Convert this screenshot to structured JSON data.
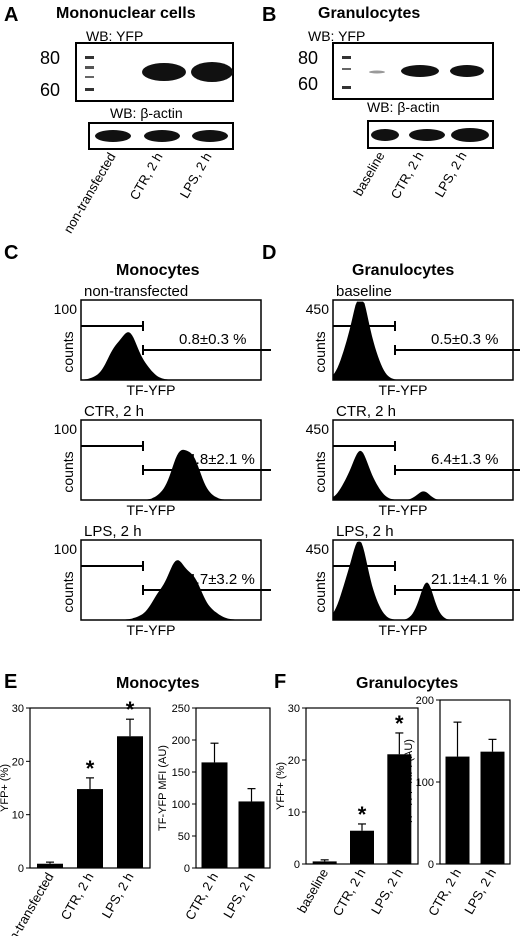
{
  "panels": {
    "A": {
      "letter": "A",
      "title": "Mononuclear cells",
      "wb_top": "WB: YFP",
      "wb_bottom": "WB: β-actin",
      "mw": [
        "80",
        "60"
      ],
      "lanes": [
        "non-transfected",
        "CTR, 2 h",
        "LPS, 2 h"
      ]
    },
    "B": {
      "letter": "B",
      "title": "Granulocytes",
      "wb_top": "WB: YFP",
      "wb_bottom": "WB: β-actin",
      "mw": [
        "80",
        "60"
      ],
      "lanes": [
        "baseline",
        "CTR, 2 h",
        "LPS, 2 h"
      ]
    },
    "C": {
      "letter": "C",
      "title": "Monocytes",
      "ymax": "100",
      "ylabel": "counts",
      "xlabel": "TF-YFP",
      "histograms": [
        {
          "condition": "non-transfected",
          "percent": "0.8±0.3 %"
        },
        {
          "condition": "CTR, 2 h",
          "percent": "14.8±2.1 %"
        },
        {
          "condition": "LPS, 2 h",
          "percent": "24.7±3.2 %"
        }
      ]
    },
    "D": {
      "letter": "D",
      "title": "Granulocytes",
      "ymax": "450",
      "ylabel": "counts",
      "xlabel": "TF-YFP",
      "histograms": [
        {
          "condition": "baseline",
          "percent": "0.5±0.3 %"
        },
        {
          "condition": "CTR, 2 h",
          "percent": "6.4±1.3 %"
        },
        {
          "condition": "LPS, 2 h",
          "percent": "21.1±4.1 %"
        }
      ]
    },
    "E": {
      "letter": "E",
      "title": "Monocytes"
    },
    "F": {
      "letter": "F",
      "title": "Granulocytes"
    }
  },
  "chart_data": [
    {
      "type": "bar",
      "panel": "E",
      "categories": [
        "non-transfected",
        "CTR, 2 h",
        "LPS, 2 h"
      ],
      "values": [
        0.8,
        14.8,
        24.7
      ],
      "errors": [
        0.3,
        2.1,
        3.2
      ],
      "significant": [
        false,
        true,
        true
      ],
      "ylabel": "YFP+ (%)",
      "ylim": [
        0,
        30
      ],
      "yticks": [
        0,
        10,
        20,
        30
      ]
    },
    {
      "type": "bar",
      "panel": "E",
      "categories": [
        "CTR, 2 h",
        "LPS, 2 h"
      ],
      "values": [
        165,
        104
      ],
      "errors": [
        30,
        20
      ],
      "ylabel": "TF-YFP MFI (AU)",
      "ylim": [
        0,
        250
      ],
      "yticks": [
        0,
        50,
        100,
        150,
        200,
        250
      ]
    },
    {
      "type": "bar",
      "panel": "F",
      "categories": [
        "baseline",
        "CTR, 2 h",
        "LPS, 2 h"
      ],
      "values": [
        0.5,
        6.4,
        21.1
      ],
      "errors": [
        0.3,
        1.3,
        4.1
      ],
      "significant": [
        false,
        true,
        true
      ],
      "ylabel": "YFP+ (%)",
      "ylim": [
        0,
        30
      ],
      "yticks": [
        0,
        10,
        20,
        30
      ]
    },
    {
      "type": "bar",
      "panel": "F",
      "categories": [
        "CTR, 2 h",
        "LPS, 2 h"
      ],
      "values": [
        131,
        137
      ],
      "errors": [
        42,
        15
      ],
      "ylabel": "TF-YFP MFI (AU)",
      "ylim": [
        0,
        200
      ],
      "yticks": [
        0,
        100,
        200
      ]
    }
  ]
}
